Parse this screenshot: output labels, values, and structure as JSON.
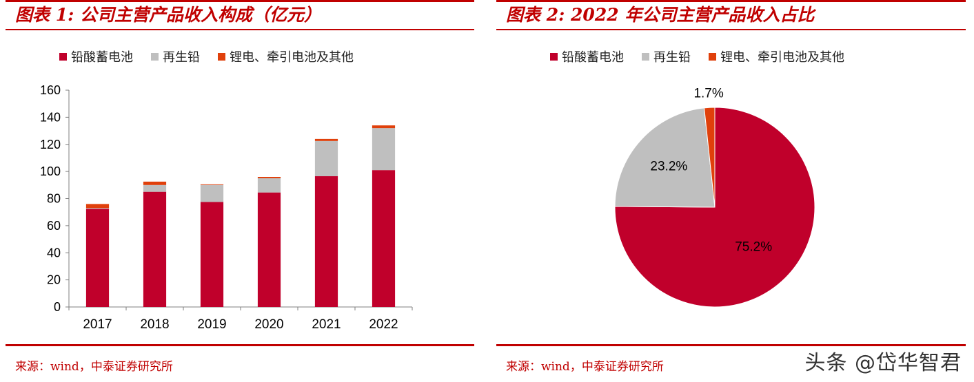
{
  "colors": {
    "lead_acid": "#c0002b",
    "recycled": "#bfbfbf",
    "lithium": "#e0400b",
    "brand": "#c00000"
  },
  "figure1": {
    "title": "图表 1: 公司主营产品收入构成（亿元）",
    "source": "来源：wind，中泰证券研究所",
    "legend": [
      "铅酸蓄电池",
      "再生铅",
      "锂电、牵引电池及其他"
    ]
  },
  "figure2": {
    "title": "图表 2: 2022 年公司主营产品收入占比",
    "source": "来源：wind，中泰证券研究所",
    "legend": [
      "铅酸蓄电池",
      "再生铅",
      "锂电、牵引电池及其他"
    ]
  },
  "watermark": "头条 @岱华智君",
  "chart_data": [
    {
      "type": "bar",
      "stacked": true,
      "title": "公司主营产品收入构成（亿元）",
      "categories": [
        "2017",
        "2018",
        "2019",
        "2020",
        "2021",
        "2022"
      ],
      "series": [
        {
          "name": "铅酸蓄电池",
          "values": [
            72.5,
            85.0,
            77.5,
            84.5,
            96.5,
            101.0
          ]
        },
        {
          "name": "再生铅",
          "values": [
            0.5,
            5.0,
            12.5,
            10.5,
            26.0,
            31.0
          ]
        },
        {
          "name": "锂电、牵引电池及其他",
          "values": [
            3.0,
            2.5,
            0.5,
            1.0,
            1.5,
            2.0
          ]
        }
      ],
      "ylim": [
        0,
        160
      ],
      "yticks": [
        0,
        20,
        40,
        60,
        80,
        100,
        120,
        140,
        160
      ],
      "xlabel": "",
      "ylabel": ""
    },
    {
      "type": "pie",
      "title": "2022 年公司主营产品收入占比",
      "labels": [
        "铅酸蓄电池",
        "再生铅",
        "锂电、牵引电池及其他"
      ],
      "values": [
        75.2,
        23.2,
        1.7
      ],
      "data_labels": [
        "75.2%",
        "23.2%",
        "1.7%"
      ]
    }
  ]
}
